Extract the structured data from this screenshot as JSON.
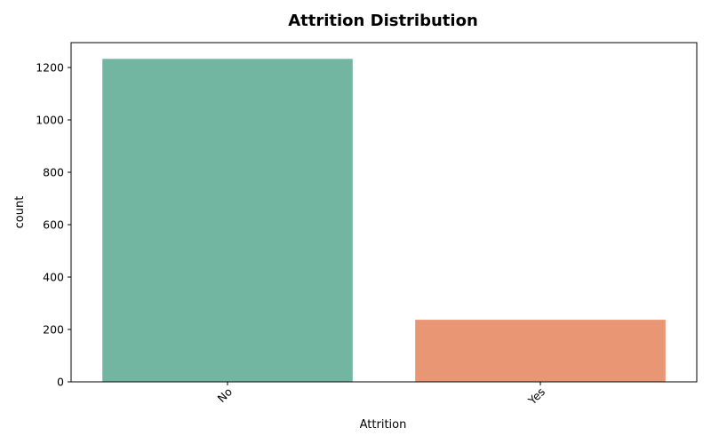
{
  "chart_data": {
    "type": "bar",
    "title": "Attrition Distribution",
    "xlabel": "Attrition",
    "ylabel": "count",
    "categories": [
      "No",
      "Yes"
    ],
    "values": [
      1233,
      237
    ],
    "ylim": [
      0,
      1295
    ],
    "yticks": [
      0,
      200,
      400,
      600,
      800,
      1000,
      1200
    ],
    "xtick_rotation_deg": 45,
    "colors": [
      "#72b6a1",
      "#e99675"
    ],
    "grid": false,
    "legend": "none"
  }
}
